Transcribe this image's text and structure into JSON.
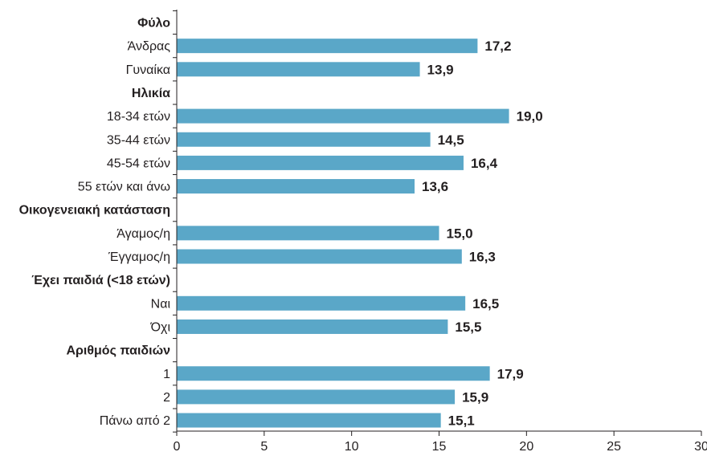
{
  "chart_data": {
    "type": "bar",
    "orientation": "horizontal",
    "bar_color": "#5aa7c8",
    "xlim": [
      0,
      30
    ],
    "x_ticks": [
      "0",
      "5",
      "10",
      "15",
      "20",
      "25",
      "30"
    ],
    "grid": false,
    "rows": [
      {
        "label": "Φύλο",
        "header": true
      },
      {
        "label": "Άνδρας",
        "value": 17.2,
        "value_label": "17,2"
      },
      {
        "label": "Γυναίκα",
        "value": 13.9,
        "value_label": "13,9"
      },
      {
        "label": "Ηλικία",
        "header": true
      },
      {
        "label": "18-34 ετών",
        "value": 19.0,
        "value_label": "19,0"
      },
      {
        "label": "35-44 ετών",
        "value": 14.5,
        "value_label": "14,5"
      },
      {
        "label": "45-54 ετών",
        "value": 16.4,
        "value_label": "16,4"
      },
      {
        "label": "55 ετών και άνω",
        "value": 13.6,
        "value_label": "13,6"
      },
      {
        "label": "Οικογενειακή κατάσταση",
        "header": true
      },
      {
        "label": "Άγαμος/η",
        "value": 15.0,
        "value_label": "15,0"
      },
      {
        "label": "Έγγαμος/η",
        "value": 16.3,
        "value_label": "16,3"
      },
      {
        "label": "Έχει παιδιά (<18 ετών)",
        "header": true
      },
      {
        "label": "Ναι",
        "value": 16.5,
        "value_label": "16,5"
      },
      {
        "label": "Όχι",
        "value": 15.5,
        "value_label": "15,5"
      },
      {
        "label": "Αριθμός παιδιών",
        "header": true
      },
      {
        "label": "1",
        "value": 17.9,
        "value_label": "17,9"
      },
      {
        "label": "2",
        "value": 15.9,
        "value_label": "15,9"
      },
      {
        "label": "Πάνω από 2",
        "value": 15.1,
        "value_label": "15,1"
      }
    ]
  }
}
